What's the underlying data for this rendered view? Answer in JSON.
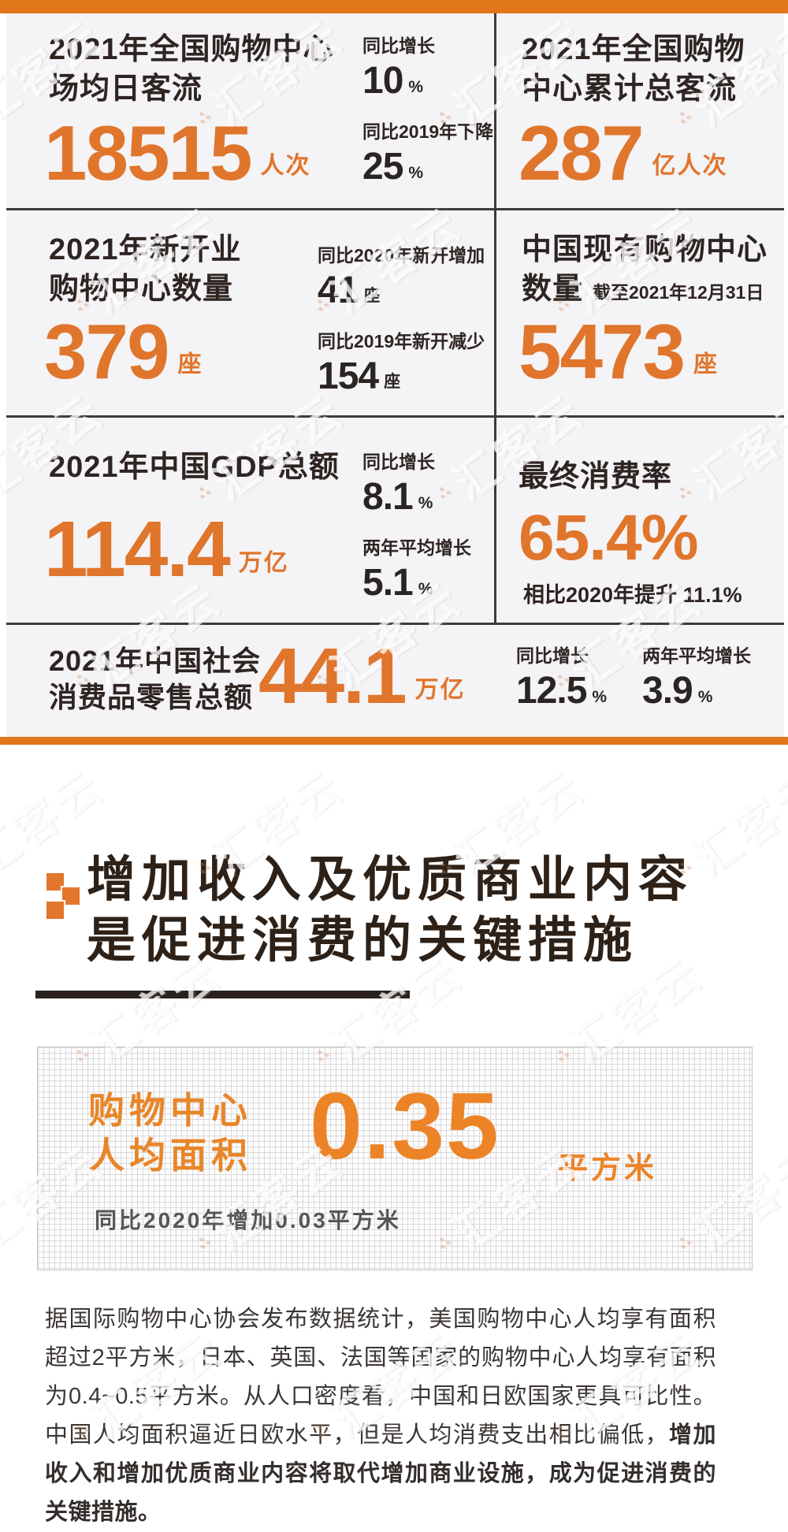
{
  "theme": {
    "accent_orange": "#E2761B",
    "number_orange": "#E0752C",
    "highlight_orange": "#EC8427",
    "dark_text": "#2E2522",
    "panel_gray": "#F4F3F5",
    "note_gray": "#55565A"
  },
  "watermark": {
    "text": "汇客云",
    "dots": "∴"
  },
  "panels": {
    "row1": {
      "left": {
        "title1": "2021年全国购物中心",
        "title2": "场均日客流",
        "value": "18515",
        "unit": "人次",
        "sub1_label": "同比增长",
        "sub1_value": "10",
        "sub1_unit": "%",
        "sub2_label": "同比2019年下降",
        "sub2_value": "25",
        "sub2_unit": "%"
      },
      "right": {
        "title1": "2021年全国购物",
        "title2": "中心累计总客流",
        "value": "287",
        "unit": "亿人次"
      }
    },
    "row2": {
      "left": {
        "title1": "2021年新开业",
        "title2": "购物中心数量",
        "value": "379",
        "unit": "座",
        "sub1_label": "同比2020年新开增加",
        "sub1_value": "41",
        "sub1_unit": "座",
        "sub2_label": "同比2019年新开减少",
        "sub2_value": "154",
        "sub2_unit": "座"
      },
      "right": {
        "title1": "中国现有购物中心",
        "title2": "数量",
        "title_note": "截至2021年12月31日",
        "value": "5473",
        "unit": "座"
      }
    },
    "row3": {
      "left": {
        "title": "2021年中国GDP总额",
        "value": "114.4",
        "unit": "万亿",
        "sub1_label": "同比增长",
        "sub1_value": "8.1",
        "sub1_unit": "%",
        "sub2_label": "两年平均增长",
        "sub2_value": "5.1",
        "sub2_unit": "%"
      },
      "right": {
        "title": "最终消费率",
        "value": "65.4%",
        "note": "相比2020年提升 11.1%"
      }
    },
    "row4": {
      "title1": "2021年中国社会",
      "title2": "消费品零售总额",
      "value": "44.1",
      "unit": "万亿",
      "sub1_label": "同比增长",
      "sub1_value": "12.5",
      "sub1_unit": "%",
      "sub2_label": "两年平均增长",
      "sub2_value": "3.9",
      "sub2_unit": "%"
    }
  },
  "section": {
    "heading1": "增加收入及优质商业内容",
    "heading2": "是促进消费的关键措施"
  },
  "highlight": {
    "label1": "购物中心",
    "label2": "人均面积",
    "value": "0.35",
    "unit": "平方米",
    "note": "同比2020年增加0.03平方米"
  },
  "paragraph": {
    "normal": "据国际购物中心协会发布数据统计，美国购物中心人均享有面积超过2平方米，日本、英国、法国等国家的购物中心人均享有面积为0.4~0.5平方米。从人口密度看，中国和日欧国家更具可比性。中国人均面积逼近日欧水平，但是人均消费支出相比偏低，",
    "bold": "增加收入和增加优质商业内容将取代增加商业设施，成为促进消费的关键措施。"
  }
}
